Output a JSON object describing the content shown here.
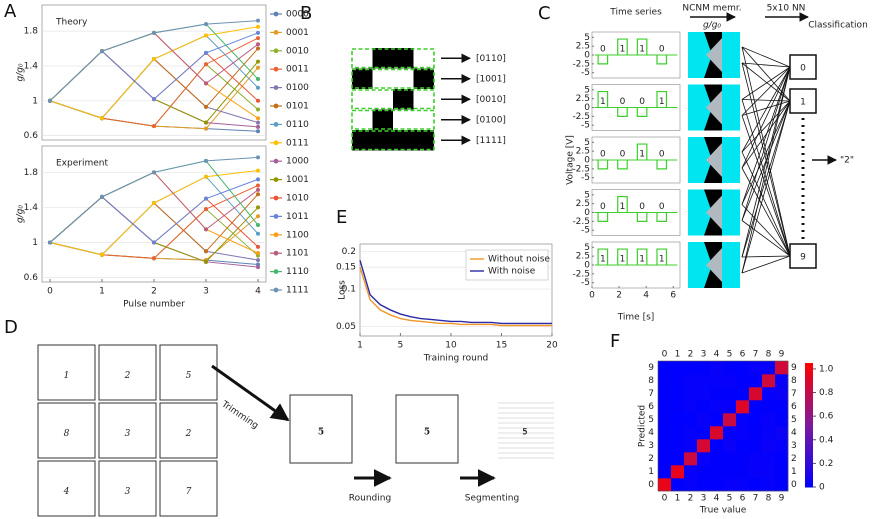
{
  "panel_labels": [
    "A",
    "B",
    "C",
    "D",
    "E",
    "F"
  ],
  "chart_data": [
    {
      "type": "line",
      "title": "Theory",
      "ylabel": "g/g₀",
      "x": [
        0,
        1,
        2,
        3,
        4
      ],
      "xlim": [
        0,
        4
      ],
      "ylim": [
        0.55,
        2.1
      ],
      "yticks": [
        0.6,
        1,
        1.4,
        1.8
      ],
      "grid": true,
      "series": [
        {
          "name": "0000",
          "color": "#5e81b5",
          "values": [
            1,
            0.8,
            0.71,
            0.68,
            0.65
          ]
        },
        {
          "name": "0001",
          "color": "#e19c24",
          "values": [
            1,
            0.8,
            0.71,
            0.68,
            1.38
          ]
        },
        {
          "name": "0010",
          "color": "#8fb032",
          "values": [
            1,
            0.8,
            0.71,
            1.42,
            0.9
          ]
        },
        {
          "name": "0011",
          "color": "#eb6235",
          "values": [
            1,
            0.8,
            0.71,
            1.42,
            1.72
          ]
        },
        {
          "name": "0100",
          "color": "#8778b3",
          "values": [
            1,
            0.8,
            1.48,
            0.93,
            0.75
          ]
        },
        {
          "name": "0101",
          "color": "#c56e1a",
          "values": [
            1,
            0.8,
            1.48,
            0.93,
            1.6
          ]
        },
        {
          "name": "0110",
          "color": "#5d9ec7",
          "values": [
            1,
            0.8,
            1.48,
            1.75,
            1.15
          ]
        },
        {
          "name": "0111",
          "color": "#ffbf00",
          "values": [
            1,
            0.8,
            1.48,
            1.75,
            1.85
          ]
        },
        {
          "name": "1000",
          "color": "#a5609d",
          "values": [
            1,
            1.57,
            1.02,
            0.75,
            0.7
          ]
        },
        {
          "name": "1001",
          "color": "#929600",
          "values": [
            1,
            1.57,
            1.02,
            0.75,
            1.45
          ]
        },
        {
          "name": "1010",
          "color": "#e95536",
          "values": [
            1,
            1.57,
            1.02,
            1.55,
            1.0
          ]
        },
        {
          "name": "1011",
          "color": "#6685d9",
          "values": [
            1,
            1.57,
            1.02,
            1.55,
            1.78
          ]
        },
        {
          "name": "1100",
          "color": "#f89f13",
          "values": [
            1,
            1.57,
            1.78,
            1.2,
            0.8
          ]
        },
        {
          "name": "1101",
          "color": "#bc5b80",
          "values": [
            1,
            1.57,
            1.78,
            1.2,
            1.65
          ]
        },
        {
          "name": "1110",
          "color": "#47b66d",
          "values": [
            1,
            1.57,
            1.78,
            1.88,
            1.25
          ]
        },
        {
          "name": "1111",
          "color": "#6d92b3",
          "values": [
            1,
            1.57,
            1.78,
            1.88,
            1.92
          ]
        }
      ]
    },
    {
      "type": "line",
      "title": "Experiment",
      "ylabel": "g/g₀",
      "xlabel": "Pulse number",
      "x": [
        0,
        1,
        2,
        3,
        4
      ],
      "xlim": [
        0,
        4
      ],
      "xticks": [
        0,
        1,
        2,
        3,
        4
      ],
      "ylim": [
        0.55,
        2.1
      ],
      "yticks": [
        0.6,
        1,
        1.4,
        1.8
      ],
      "grid": true,
      "series": [
        {
          "color": "#5e81b5",
          "values": [
            1,
            0.86,
            0.82,
            0.8,
            0.75
          ]
        },
        {
          "color": "#e19c24",
          "values": [
            1,
            0.86,
            0.82,
            0.8,
            1.3
          ]
        },
        {
          "color": "#8fb032",
          "values": [
            1,
            0.86,
            0.82,
            1.38,
            0.85
          ]
        },
        {
          "color": "#eb6235",
          "values": [
            1,
            0.86,
            0.82,
            1.38,
            1.65
          ]
        },
        {
          "color": "#8778b3",
          "values": [
            1,
            0.86,
            1.45,
            0.9,
            0.8
          ]
        },
        {
          "color": "#c56e1a",
          "values": [
            1,
            0.86,
            1.45,
            0.9,
            1.55
          ]
        },
        {
          "color": "#5d9ec7",
          "values": [
            1,
            0.86,
            1.45,
            1.75,
            1.1
          ]
        },
        {
          "color": "#ffbf00",
          "values": [
            1,
            0.86,
            1.45,
            1.75,
            1.82
          ]
        },
        {
          "color": "#a5609d",
          "values": [
            1,
            1.52,
            1.0,
            0.78,
            0.72
          ]
        },
        {
          "color": "#929600",
          "values": [
            1,
            1.52,
            1.0,
            0.78,
            1.4
          ]
        },
        {
          "color": "#e95536",
          "values": [
            1,
            1.52,
            1.0,
            1.5,
            0.95
          ]
        },
        {
          "color": "#6685d9",
          "values": [
            1,
            1.52,
            1.0,
            1.5,
            1.72
          ]
        },
        {
          "color": "#f89f13",
          "values": [
            1,
            1.52,
            1.8,
            1.15,
            0.88
          ]
        },
        {
          "color": "#bc5b80",
          "values": [
            1,
            1.52,
            1.8,
            1.15,
            1.6
          ]
        },
        {
          "color": "#47b66d",
          "values": [
            1,
            1.52,
            1.8,
            1.93,
            1.2
          ]
        },
        {
          "color": "#6d92b3",
          "values": [
            1,
            1.52,
            1.8,
            1.93,
            1.97
          ]
        }
      ]
    },
    {
      "type": "line",
      "xlabel": "Training round",
      "ylabel": "Loss",
      "log_y": true,
      "x": [
        1,
        2,
        3,
        4,
        5,
        6,
        7,
        8,
        9,
        10,
        11,
        12,
        13,
        14,
        15,
        16,
        17,
        18,
        19,
        20
      ],
      "xlim": [
        1,
        20
      ],
      "xticks": [
        1,
        5,
        10,
        15,
        20
      ],
      "ylim": [
        0.042,
        0.23
      ],
      "yticks": [
        0.05,
        0.1,
        0.15,
        0.2
      ],
      "grid": true,
      "legend": "top-right",
      "series": [
        {
          "name": "Without noise",
          "color": "#f0962a",
          "values": [
            0.15,
            0.082,
            0.068,
            0.062,
            0.058,
            0.056,
            0.055,
            0.054,
            0.053,
            0.053,
            0.052,
            0.052,
            0.052,
            0.052,
            0.051,
            0.051,
            0.051,
            0.051,
            0.051,
            0.051
          ]
        },
        {
          "name": "With noise",
          "color": "#2a2aa8",
          "values": [
            0.17,
            0.09,
            0.075,
            0.068,
            0.063,
            0.06,
            0.058,
            0.057,
            0.056,
            0.055,
            0.055,
            0.054,
            0.054,
            0.054,
            0.053,
            0.053,
            0.053,
            0.053,
            0.053,
            0.053
          ]
        }
      ]
    },
    {
      "type": "heatmap",
      "xlabel": "True value",
      "ylabel": "Predicted",
      "categories": [
        0,
        1,
        2,
        3,
        4,
        5,
        6,
        7,
        8,
        9
      ],
      "colormap": [
        "#0000ff",
        "#7d1a9e",
        "#ff0000"
      ],
      "clim": [
        0,
        1.05
      ],
      "cticks": [
        0,
        0.2,
        0.4,
        0.6,
        0.8,
        {
          "value": 1,
          "label": "1.0"
        }
      ],
      "values": [
        [
          0.97,
          0,
          0.02,
          0.01,
          0,
          0.02,
          0.02,
          0,
          0.02,
          0.01
        ],
        [
          0,
          0.96,
          0.03,
          0.01,
          0.01,
          0.01,
          0.01,
          0.03,
          0.02,
          0.01
        ],
        [
          0.01,
          0.01,
          0.84,
          0.03,
          0.01,
          0.01,
          0.01,
          0.03,
          0.02,
          0
        ],
        [
          0,
          0.01,
          0.03,
          0.88,
          0,
          0.04,
          0,
          0.01,
          0.04,
          0.02
        ],
        [
          0,
          0,
          0.02,
          0,
          0.9,
          0.02,
          0.02,
          0.01,
          0.02,
          0.05
        ],
        [
          0.01,
          0,
          0,
          0.03,
          0,
          0.83,
          0.02,
          0,
          0.03,
          0.01
        ],
        [
          0.01,
          0.01,
          0.02,
          0,
          0.02,
          0.03,
          0.92,
          0,
          0.01,
          0
        ],
        [
          0,
          0,
          0.02,
          0.02,
          0.01,
          0.01,
          0,
          0.89,
          0.02,
          0.04
        ],
        [
          0.01,
          0.01,
          0.02,
          0.02,
          0.02,
          0.03,
          0.01,
          0.01,
          0.85,
          0.03
        ],
        [
          0,
          0,
          0,
          0.01,
          0.03,
          0.01,
          0,
          0.03,
          0.02,
          0.86
        ]
      ]
    }
  ],
  "panel_b": {
    "rows": [
      "[0110]",
      "[1001]",
      "[0010]",
      "[0100]",
      "[1111]"
    ]
  },
  "panel_c": {
    "col_titles": [
      "Time series",
      "NCNM memr.",
      "5x10 NN",
      "Classification"
    ],
    "memr_axis": "g/g₀",
    "ylabel": "Voltage [V]",
    "xlabel": "Time [s]",
    "xlim": [
      0,
      6.5
    ],
    "xticks": [
      0,
      2,
      4,
      6
    ],
    "ylim": [
      -6.5,
      6.5
    ],
    "yticks": [
      5,
      2.5,
      0,
      -2.5,
      -5
    ],
    "pulse_voltage": [
      -2.5,
      4.5
    ],
    "pulse_bits": [
      [
        0,
        1,
        1,
        0
      ],
      [
        1,
        0,
        0,
        1
      ],
      [
        0,
        0,
        1,
        0
      ],
      [
        0,
        1,
        0,
        0
      ],
      [
        1,
        1,
        1,
        1
      ]
    ],
    "outputs": [
      0,
      1,
      9
    ],
    "result": "\"2\""
  },
  "panel_d": {
    "digits": [
      1,
      2,
      5,
      8,
      3,
      2,
      4,
      3,
      7
    ],
    "sample": 5,
    "steps": [
      "Trimming",
      "Rounding",
      "Segmenting"
    ]
  }
}
